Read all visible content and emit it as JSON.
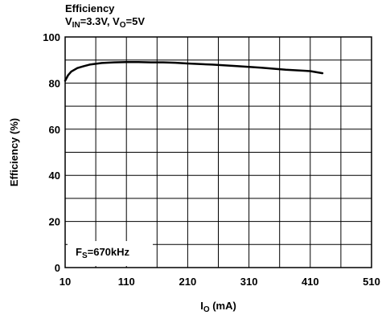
{
  "chart_data": {
    "type": "line",
    "title": "Efficiency",
    "subtitle": {
      "v1": "V",
      "v1_sub": "IN",
      "v1_val": "=3.3V, ",
      "v2": "V",
      "v2_sub": "O",
      "v2_val": "=5V"
    },
    "xlabel": {
      "main": "I",
      "sub": "O",
      "rest": " (mA)"
    },
    "ylabel": "Efficiency (%)",
    "annotation": {
      "main": "F",
      "sub": "S",
      "rest": "=670kHz"
    },
    "xlim": [
      10,
      510
    ],
    "ylim": [
      0,
      100
    ],
    "x_ticks": [
      10,
      110,
      210,
      310,
      410,
      510
    ],
    "y_ticks": [
      0,
      20,
      40,
      60,
      80,
      100
    ],
    "x_minor_step": 50,
    "y_minor_step": 10,
    "grid": true,
    "series": [
      {
        "x": [
          10,
          12,
          15,
          20,
          30,
          40,
          50,
          70,
          90,
          110,
          130,
          150,
          170,
          190,
          210,
          250,
          290,
          330,
          370,
          410,
          430
        ],
        "y": [
          81,
          82,
          83.5,
          85,
          86.5,
          87.3,
          88,
          88.7,
          89,
          89.1,
          89.1,
          89,
          89,
          88.8,
          88.5,
          88,
          87.4,
          86.7,
          85.8,
          85.2,
          84.3
        ]
      }
    ]
  }
}
